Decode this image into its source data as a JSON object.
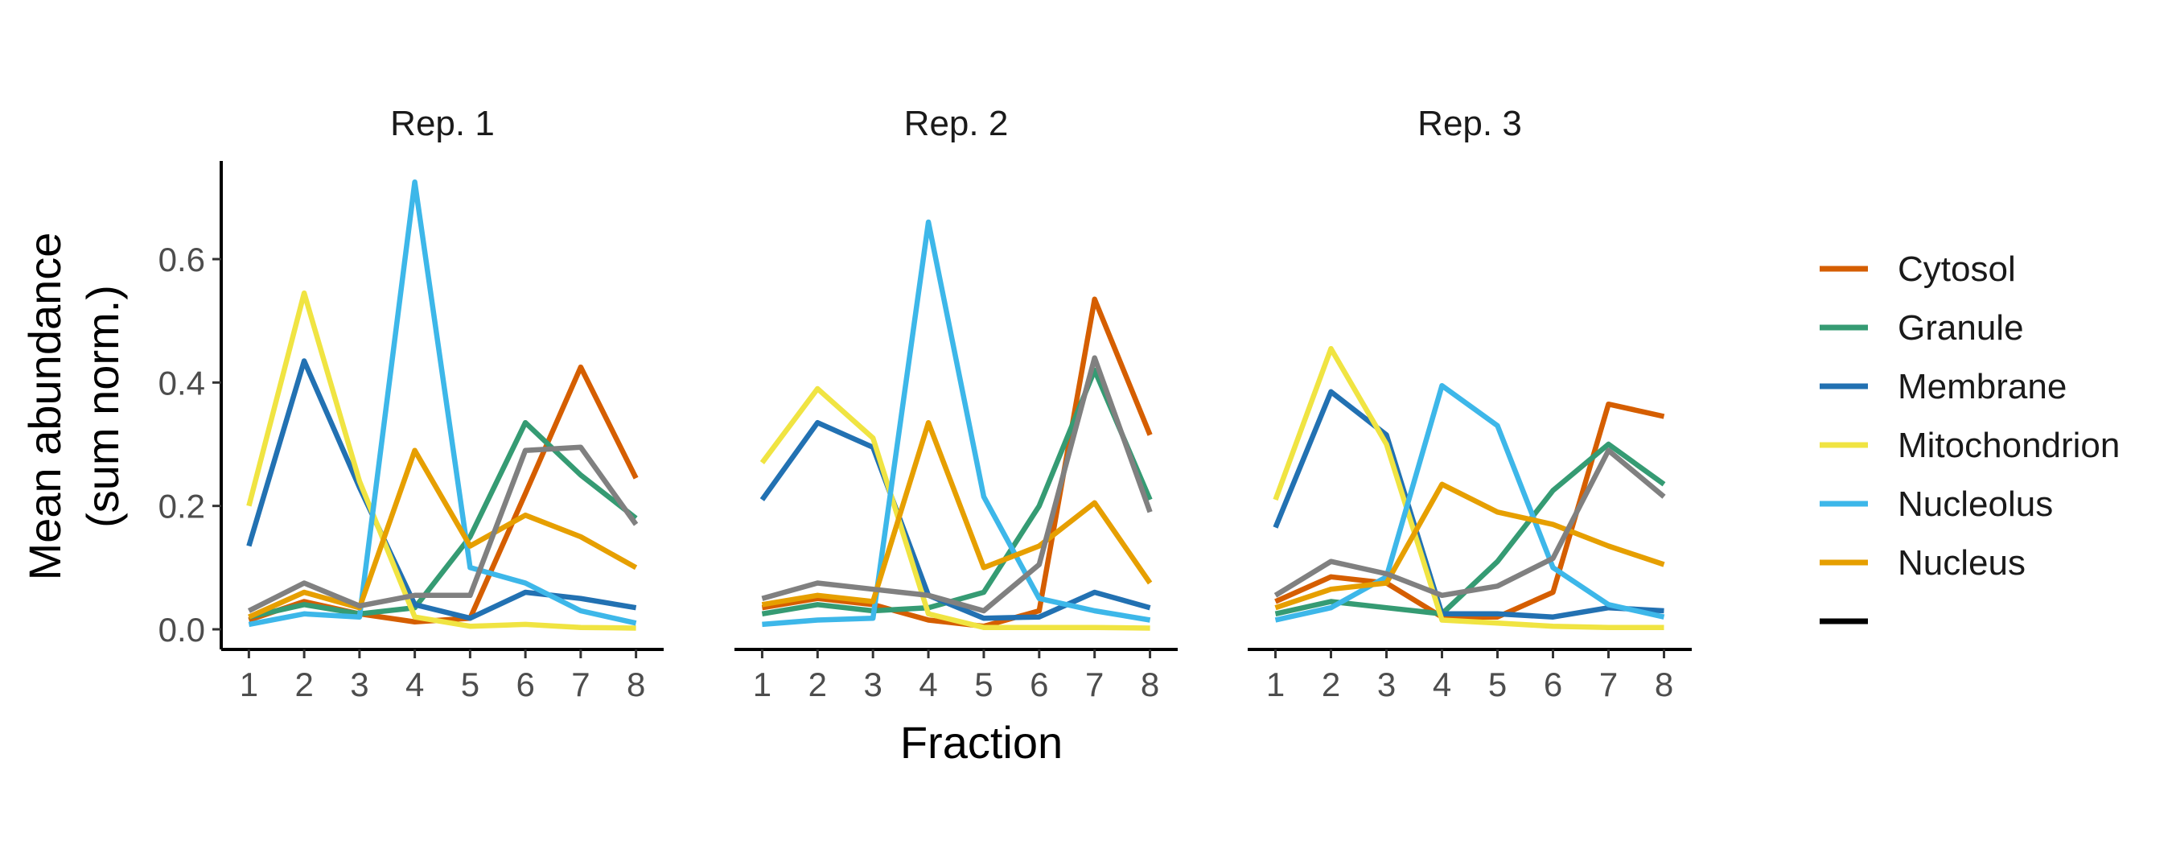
{
  "chart_data": {
    "type": "line",
    "xlabel": "Fraction",
    "ylabel": [
      "Mean abundance",
      "(sum norm.)"
    ],
    "x": [
      1,
      2,
      3,
      4,
      5,
      6,
      7,
      8
    ],
    "ylim": [
      0,
      0.75
    ],
    "yticks": [
      0.0,
      0.2,
      0.4,
      0.6
    ],
    "ytick_labels": [
      "0.0",
      "0.2",
      "0.4",
      "0.6"
    ],
    "grid": false,
    "legend_position": "right",
    "facets": [
      {
        "title": "Rep. 1",
        "series": [
          {
            "name": "Cytosol",
            "values": [
              0.015,
              0.045,
              0.025,
              0.012,
              0.018,
              0.22,
              0.425,
              0.245
            ]
          },
          {
            "name": "Granule",
            "values": [
              0.02,
              0.04,
              0.025,
              0.035,
              0.15,
              0.335,
              0.25,
              0.18
            ]
          },
          {
            "name": "Membrane",
            "values": [
              0.135,
              0.435,
              0.23,
              0.04,
              0.018,
              0.06,
              0.05,
              0.035
            ]
          },
          {
            "name": "Mitochondrion",
            "values": [
              0.2,
              0.545,
              0.24,
              0.02,
              0.005,
              0.008,
              0.003,
              0.002
            ]
          },
          {
            "name": "Nucleolus",
            "values": [
              0.008,
              0.025,
              0.02,
              0.725,
              0.1,
              0.075,
              0.03,
              0.01
            ]
          },
          {
            "name": "Nucleus",
            "values": [
              0.02,
              0.06,
              0.035,
              0.29,
              0.135,
              0.185,
              0.15,
              0.1
            ]
          },
          {
            "name": "",
            "values": [
              0.03,
              0.075,
              0.038,
              0.055,
              0.055,
              0.29,
              0.295,
              0.17
            ]
          }
        ]
      },
      {
        "title": "Rep. 2",
        "series": [
          {
            "name": "Cytosol",
            "values": [
              0.035,
              0.05,
              0.04,
              0.015,
              0.005,
              0.03,
              0.535,
              0.315
            ]
          },
          {
            "name": "Granule",
            "values": [
              0.025,
              0.04,
              0.03,
              0.035,
              0.06,
              0.2,
              0.42,
              0.21
            ]
          },
          {
            "name": "Membrane",
            "values": [
              0.21,
              0.335,
              0.295,
              0.055,
              0.018,
              0.02,
              0.06,
              0.035
            ]
          },
          {
            "name": "Mitochondrion",
            "values": [
              0.27,
              0.39,
              0.31,
              0.025,
              0.003,
              0.003,
              0.003,
              0.002
            ]
          },
          {
            "name": "Nucleolus",
            "values": [
              0.008,
              0.015,
              0.018,
              0.66,
              0.215,
              0.05,
              0.03,
              0.015
            ]
          },
          {
            "name": "Nucleus",
            "values": [
              0.04,
              0.055,
              0.045,
              0.335,
              0.1,
              0.135,
              0.205,
              0.075
            ]
          },
          {
            "name": "",
            "values": [
              0.05,
              0.075,
              0.065,
              0.055,
              0.03,
              0.105,
              0.44,
              0.19
            ]
          }
        ]
      },
      {
        "title": "Rep. 3",
        "series": [
          {
            "name": "Cytosol",
            "values": [
              0.045,
              0.085,
              0.075,
              0.02,
              0.02,
              0.06,
              0.365,
              0.345
            ]
          },
          {
            "name": "Granule",
            "values": [
              0.025,
              0.045,
              0.035,
              0.025,
              0.11,
              0.225,
              0.3,
              0.235
            ]
          },
          {
            "name": "Membrane",
            "values": [
              0.165,
              0.385,
              0.315,
              0.025,
              0.025,
              0.02,
              0.035,
              0.03
            ]
          },
          {
            "name": "Mitochondrion",
            "values": [
              0.21,
              0.455,
              0.3,
              0.015,
              0.01,
              0.005,
              0.003,
              0.003
            ]
          },
          {
            "name": "Nucleolus",
            "values": [
              0.015,
              0.035,
              0.085,
              0.395,
              0.33,
              0.1,
              0.04,
              0.02
            ]
          },
          {
            "name": "Nucleus",
            "values": [
              0.035,
              0.065,
              0.075,
              0.235,
              0.19,
              0.17,
              0.135,
              0.105
            ]
          },
          {
            "name": "",
            "values": [
              0.055,
              0.11,
              0.09,
              0.055,
              0.07,
              0.115,
              0.29,
              0.215
            ]
          }
        ]
      }
    ],
    "legend": [
      {
        "name": "Cytosol",
        "color": "#D55E00"
      },
      {
        "name": "Granule",
        "color": "#359B73"
      },
      {
        "name": "Membrane",
        "color": "#2271B2"
      },
      {
        "name": "Mitochondrion",
        "color": "#F0E442"
      },
      {
        "name": "Nucleolus",
        "color": "#3DB7E9"
      },
      {
        "name": "Nucleus",
        "color": "#E69F00"
      },
      {
        "name": "",
        "color": "#000000"
      }
    ],
    "series_colors": {
      "Cytosol": "#D55E00",
      "Granule": "#359B73",
      "Membrane": "#2271B2",
      "Mitochondrion": "#F0E442",
      "Nucleolus": "#3DB7E9",
      "Nucleus": "#E69F00",
      "unlabeled": "#808080"
    }
  }
}
